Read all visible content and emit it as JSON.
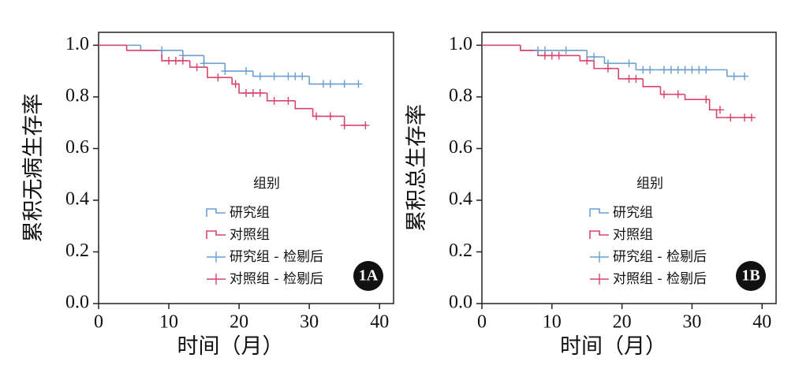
{
  "chart_data": [
    {
      "type": "step",
      "xlabel": "时间（月）",
      "ylabel": "累积无病生存率",
      "annotation": "1A",
      "xlim": [
        0,
        42
      ],
      "ylim": [
        0,
        1.05
      ],
      "xticks": [
        0,
        10,
        20,
        30,
        40
      ],
      "yticks": [
        {
          "value": 0,
          "label": "0.0"
        },
        0.2,
        0.4,
        0.6,
        0.8,
        {
          "value": 1,
          "label": "1.0"
        }
      ],
      "legend": {
        "title": "组别"
      },
      "series": [
        {
          "name": "研究组",
          "color": "#6a9fd0",
          "style": "step",
          "x": [
            0,
            6,
            12,
            15,
            18,
            22,
            30,
            37
          ],
          "values": [
            1.0,
            0.98,
            0.96,
            0.93,
            0.9,
            0.88,
            0.85,
            0.85
          ]
        },
        {
          "name": "对照组",
          "color": "#d9446a",
          "style": "step",
          "x": [
            0,
            4,
            9,
            13,
            15.5,
            19,
            20,
            24,
            28,
            30.5,
            35,
            38
          ],
          "values": [
            1.0,
            0.98,
            0.94,
            0.915,
            0.875,
            0.85,
            0.815,
            0.785,
            0.755,
            0.725,
            0.69,
            0.69
          ]
        },
        {
          "name": "研究组 - 检剔后",
          "color": "#6a9fd0",
          "style": "censor",
          "x": [
            9,
            12,
            15,
            18,
            21,
            23,
            25,
            27,
            28,
            29,
            32,
            33,
            35,
            37
          ],
          "values": [
            0.98,
            0.96,
            0.93,
            0.9,
            0.9,
            0.88,
            0.88,
            0.88,
            0.88,
            0.88,
            0.85,
            0.85,
            0.85,
            0.85
          ]
        },
        {
          "name": "对照组 - 检剔后",
          "color": "#d9446a",
          "style": "censor",
          "x": [
            10,
            11,
            12,
            14,
            17,
            19.5,
            21,
            22,
            23,
            25,
            27,
            31,
            33,
            35,
            38
          ],
          "values": [
            0.94,
            0.94,
            0.94,
            0.915,
            0.875,
            0.85,
            0.815,
            0.815,
            0.815,
            0.785,
            0.785,
            0.725,
            0.725,
            0.69,
            0.69
          ]
        }
      ]
    },
    {
      "type": "step",
      "xlabel": "时间（月）",
      "ylabel": "累积总生存率",
      "annotation": "1B",
      "xlim": [
        0,
        42
      ],
      "ylim": [
        0,
        1.05
      ],
      "xticks": [
        0,
        10,
        20,
        30,
        40
      ],
      "yticks": [
        {
          "value": 0,
          "label": "0.0"
        },
        0.2,
        0.4,
        0.6,
        0.8,
        {
          "value": 1,
          "label": "1.0"
        }
      ],
      "legend": {
        "title": "组别"
      },
      "series": [
        {
          "name": "研究组",
          "color": "#6a9fd0",
          "style": "step",
          "x": [
            0,
            5.5,
            15,
            17.5,
            22,
            35,
            37.5
          ],
          "values": [
            1.0,
            0.98,
            0.955,
            0.93,
            0.905,
            0.88,
            0.88
          ]
        },
        {
          "name": "对照组",
          "color": "#d9446a",
          "style": "step",
          "x": [
            0,
            5.5,
            8,
            14,
            16,
            19.5,
            23,
            25.5,
            29,
            32.5,
            33.5,
            38.5
          ],
          "values": [
            1.0,
            0.98,
            0.96,
            0.94,
            0.91,
            0.87,
            0.84,
            0.81,
            0.79,
            0.75,
            0.72,
            0.72
          ]
        },
        {
          "name": "研究组 - 检剔后",
          "color": "#6a9fd0",
          "style": "censor",
          "x": [
            8,
            9,
            12,
            16,
            18,
            21,
            23,
            24,
            26,
            27,
            28,
            29,
            30,
            31,
            32,
            36,
            37.5
          ],
          "values": [
            0.98,
            0.98,
            0.98,
            0.955,
            0.93,
            0.93,
            0.905,
            0.905,
            0.905,
            0.905,
            0.905,
            0.905,
            0.905,
            0.905,
            0.905,
            0.88,
            0.88
          ]
        },
        {
          "name": "对照组 - 检剔后",
          "color": "#d9446a",
          "style": "censor",
          "x": [
            9,
            10,
            11,
            15,
            18,
            21,
            22,
            26,
            28,
            32,
            34,
            35.5,
            37.5,
            38.5
          ],
          "values": [
            0.96,
            0.96,
            0.96,
            0.94,
            0.91,
            0.87,
            0.87,
            0.81,
            0.81,
            0.79,
            0.75,
            0.72,
            0.72,
            0.72
          ]
        }
      ]
    }
  ]
}
